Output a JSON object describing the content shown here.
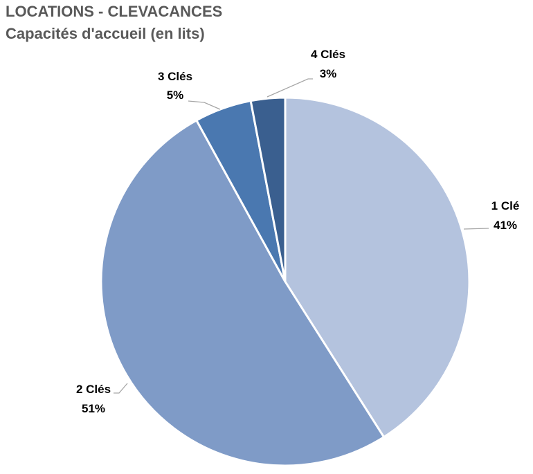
{
  "chart_data": {
    "type": "pie",
    "title": "LOCATIONS - CLEVACANCES",
    "subtitle": "Capacités d'accueil (en lits)",
    "categories": [
      "1 Clé",
      "2 Clés",
      "3 Clés",
      "4 Clés"
    ],
    "values": [
      41,
      51,
      5,
      3
    ],
    "value_labels": [
      "41%",
      "51%",
      "5%",
      "3%"
    ],
    "colors": [
      "#b4c3de",
      "#7f9bc7",
      "#4a78b0",
      "#3a5f8f"
    ],
    "start_angle_deg": 0,
    "direction": "clockwise",
    "legend": "none"
  }
}
